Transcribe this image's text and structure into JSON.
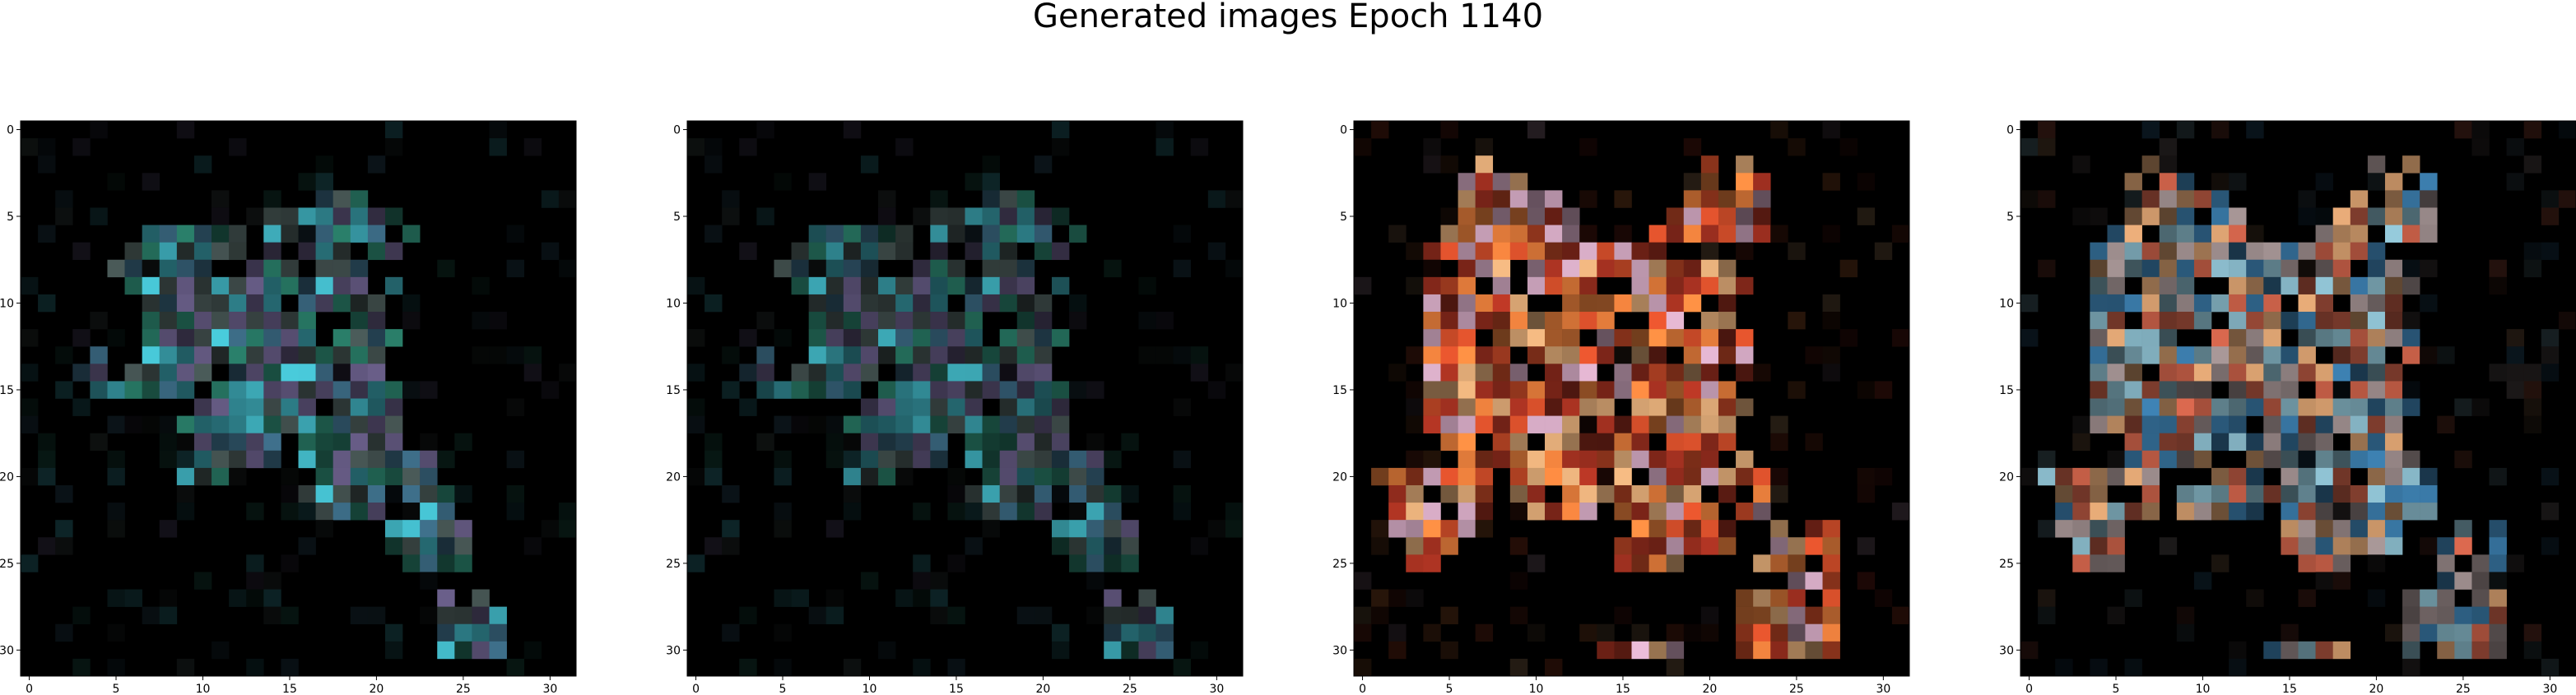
{
  "figure": {
    "title": "Generated images Epoch 1140"
  },
  "axes": {
    "x_ticks": [
      0,
      5,
      10,
      15,
      20,
      25,
      30
    ],
    "y_ticks": [
      0,
      5,
      10,
      15,
      20,
      25,
      30
    ],
    "x_tick_labels": [
      "0",
      "5",
      "10",
      "15",
      "20",
      "25",
      "30"
    ],
    "y_tick_labels": [
      "0",
      "5",
      "10",
      "15",
      "20",
      "25",
      "30"
    ],
    "xlim": [
      -0.5,
      31.5
    ],
    "ylim": [
      31.5,
      -0.5
    ],
    "grid": false
  },
  "images": [
    {
      "id": "image-1",
      "dominant_palette": [
        "#4a5a58",
        "#3e6f8a",
        "#6a5f8a",
        "#2a7f6a",
        "#48c8d8"
      ]
    },
    {
      "id": "image-2",
      "dominant_palette": [
        "#4a5a58",
        "#3e6f8a",
        "#6a5f8a",
        "#2a7f6a",
        "#48c8d8"
      ]
    },
    {
      "id": "image-3",
      "dominant_palette": [
        "#c84a28",
        "#e07a3a",
        "#d2a070",
        "#a03020",
        "#c8a0b8"
      ]
    },
    {
      "id": "image-4",
      "dominant_palette": [
        "#c86048",
        "#d8a070",
        "#9a8a8a",
        "#3a7aa8",
        "#88b8c8"
      ]
    }
  ]
}
